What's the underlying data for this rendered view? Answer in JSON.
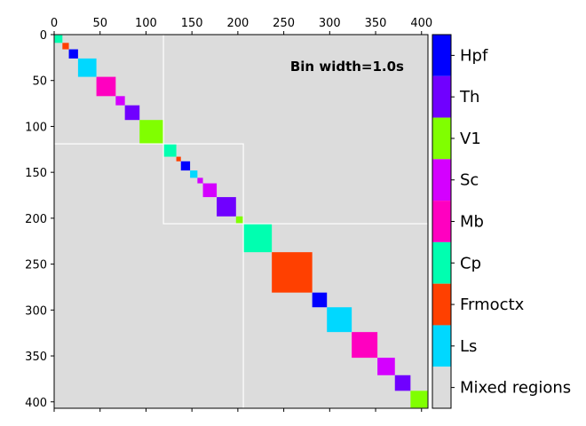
{
  "chart_data": {
    "type": "heatmap",
    "annotation": "Bin width=1.0s",
    "xlim": [
      0,
      407
    ],
    "ylim": [
      407,
      0
    ],
    "x_ticks": [
      0,
      50,
      100,
      150,
      200,
      250,
      300,
      350,
      400
    ],
    "y_ticks": [
      0,
      50,
      100,
      150,
      200,
      250,
      300,
      350,
      400
    ],
    "background_category": "Mixed regions",
    "legend": [
      {
        "label": "Hpf",
        "color": "#0000ff"
      },
      {
        "label": "Th",
        "color": "#7000ff"
      },
      {
        "label": "V1",
        "color": "#80ff00"
      },
      {
        "label": "Sc",
        "color": "#d400ff"
      },
      {
        "label": "Mb",
        "color": "#ff00c0"
      },
      {
        "label": "Cp",
        "color": "#00ffb0"
      },
      {
        "label": "Frmoctx",
        "color": "#ff4000"
      },
      {
        "label": "Ls",
        "color": "#00d8ff"
      },
      {
        "label": "Mixed regions",
        "color": "#dcdcdc"
      }
    ],
    "blocks": [
      {
        "region": "Cp",
        "start": 0,
        "end": 9
      },
      {
        "region": "Frmoctx",
        "start": 9,
        "end": 16
      },
      {
        "region": "Hpf",
        "start": 16,
        "end": 26
      },
      {
        "region": "Ls",
        "start": 26,
        "end": 46
      },
      {
        "region": "Mb",
        "start": 46,
        "end": 67
      },
      {
        "region": "Sc",
        "start": 67,
        "end": 77
      },
      {
        "region": "Th",
        "start": 77,
        "end": 93
      },
      {
        "region": "V1",
        "start": 93,
        "end": 119
      },
      {
        "region": "Cp",
        "start": 119,
        "end": 133
      },
      {
        "region": "Frmoctx",
        "start": 133,
        "end": 138
      },
      {
        "region": "Hpf",
        "start": 138,
        "end": 148
      },
      {
        "region": "Ls",
        "start": 148,
        "end": 156
      },
      {
        "region": "Sc",
        "start": 156,
        "end": 162
      },
      {
        "region": "Sc",
        "start": 162,
        "end": 177
      },
      {
        "region": "Th",
        "start": 177,
        "end": 198
      },
      {
        "region": "V1",
        "start": 198,
        "end": 206
      },
      {
        "region": "Cp",
        "start": 206,
        "end": 237
      },
      {
        "region": "Frmoctx",
        "start": 237,
        "end": 281
      },
      {
        "region": "Hpf",
        "start": 281,
        "end": 297
      },
      {
        "region": "Ls",
        "start": 297,
        "end": 324
      },
      {
        "region": "Mb",
        "start": 324,
        "end": 352
      },
      {
        "region": "Sc",
        "start": 352,
        "end": 371
      },
      {
        "region": "Th",
        "start": 371,
        "end": 388
      },
      {
        "region": "V1",
        "start": 388,
        "end": 407
      }
    ],
    "group_boundaries": [
      {
        "start": 0,
        "end": 119
      },
      {
        "start": 119,
        "end": 206
      },
      {
        "start": 206,
        "end": 407
      }
    ]
  }
}
